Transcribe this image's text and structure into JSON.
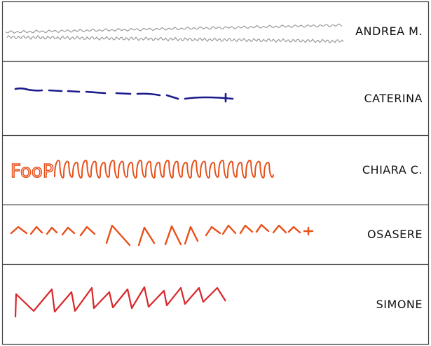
{
  "rows": [
    {
      "name": "ANDREA M.",
      "ink": "#9a9a9a"
    },
    {
      "name": "CATERINA",
      "ink": "#1a1a8c"
    },
    {
      "name": "CHIARA C.",
      "ink": "#e8501a"
    },
    {
      "name": "OSASERE",
      "ink": "#e8501a"
    },
    {
      "name": "SIMONE",
      "ink": "#d8262a"
    }
  ],
  "chiara_prefix": "FooP"
}
